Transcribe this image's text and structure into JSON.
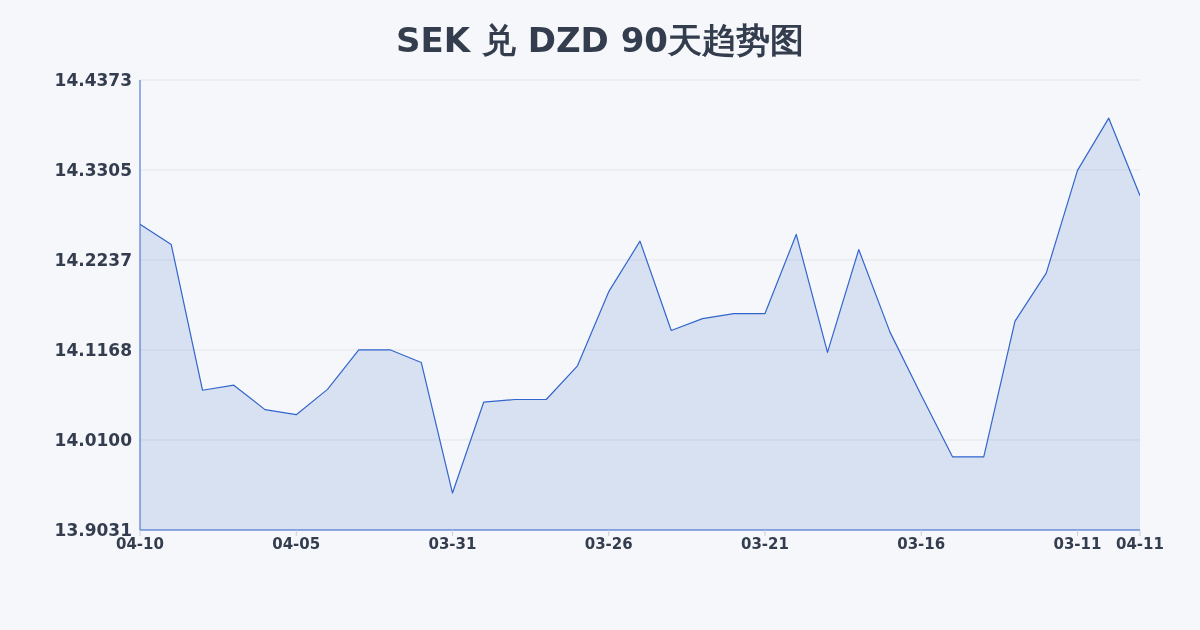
{
  "chart_data": {
    "type": "area",
    "title": "SEK 兑 DZD 90天趋势图",
    "categories": [
      "04-10",
      null,
      null,
      null,
      null,
      "04-05",
      null,
      null,
      null,
      null,
      "03-31",
      null,
      null,
      null,
      null,
      "03-26",
      null,
      null,
      null,
      null,
      "03-21",
      null,
      null,
      null,
      null,
      "03-16",
      null,
      null,
      null,
      null,
      "03-11",
      null,
      "04-11"
    ],
    "series": [
      {
        "color": "#3366cc",
        "values": [
          14.266,
          14.242,
          14.069,
          14.075,
          14.046,
          14.04,
          14.07,
          14.117,
          14.117,
          14.102,
          13.947,
          14.055,
          14.058,
          14.058,
          14.098,
          14.186,
          14.246,
          14.14,
          14.154,
          14.16,
          14.16,
          14.254,
          14.114,
          14.236,
          14.138,
          14.063,
          13.99,
          13.99,
          14.151,
          14.208,
          14.33,
          14.392,
          14.3
        ]
      }
    ],
    "ylim": [
      13.9031,
      14.4373
    ],
    "yticks": [
      13.9031,
      {
        "value": 14.01,
        "label": "14.0100"
      },
      14.1168,
      14.2237,
      14.3305,
      14.4373
    ],
    "grid": "y",
    "legend": false
  }
}
